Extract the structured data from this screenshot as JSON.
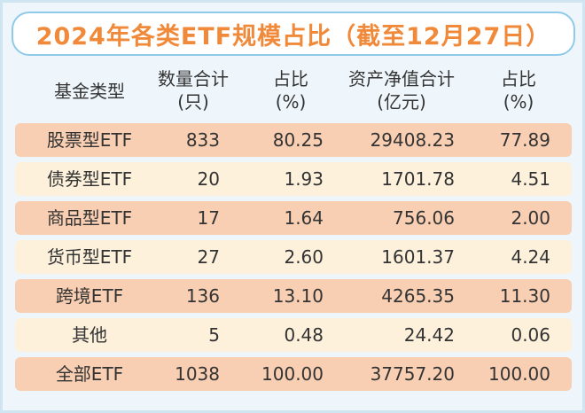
{
  "header": {
    "title": "2024年各类ETF规模占比（截至12月27日）"
  },
  "table": {
    "columns": [
      [
        "基金类型"
      ],
      [
        "数量合计",
        "(只)"
      ],
      [
        "占比",
        "(%)"
      ],
      [
        "资产净值合计",
        "(亿元)"
      ],
      [
        "占比",
        "(%)"
      ]
    ],
    "rows": [
      [
        "股票型ETF",
        "833",
        "80.25",
        "29408.23",
        "77.89"
      ],
      [
        "债券型ETF",
        "20",
        "1.93",
        "1701.78",
        "4.51"
      ],
      [
        "商品型ETF",
        "17",
        "1.64",
        "756.06",
        "2.00"
      ],
      [
        "货币型ETF",
        "27",
        "2.60",
        "1601.37",
        "4.24"
      ],
      [
        "跨境ETF",
        "136",
        "13.10",
        "4265.35",
        "11.30"
      ],
      [
        "其他",
        "5",
        "0.48",
        "24.42",
        "0.06"
      ],
      [
        "全部ETF",
        "1038",
        "100.00",
        "37757.20",
        "100.00"
      ]
    ]
  }
}
